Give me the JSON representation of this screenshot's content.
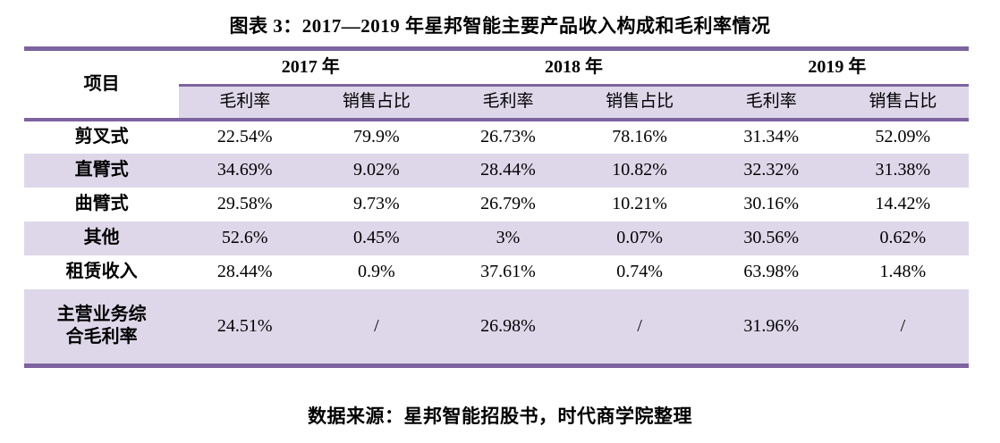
{
  "page": {
    "title": "图表 3：2017—2019 年星邦智能主要产品收入构成和毛利率情况",
    "source_note": "数据来源：星邦智能招股书，时代商学院整理"
  },
  "colors": {
    "border_purple": "#7D639F",
    "row_lavender": "#DED7E9",
    "text": "#000000",
    "background": "#FFFFFF"
  },
  "chart_data": {
    "type": "table",
    "title": "图表 3：2017—2019 年星邦智能主要产品收入构成和毛利率情况",
    "item_header": "项目",
    "year_groups": [
      {
        "label": "2017 年",
        "sub": [
          "毛利率",
          "销售占比"
        ]
      },
      {
        "label": "2018 年",
        "sub": [
          "毛利率",
          "销售占比"
        ]
      },
      {
        "label": "2019 年",
        "sub": [
          "毛利率",
          "销售占比"
        ]
      }
    ],
    "rows": [
      {
        "label": "剪叉式",
        "values": [
          "22.54%",
          "79.9%",
          "26.73%",
          "78.16%",
          "31.34%",
          "52.09%"
        ]
      },
      {
        "label": "直臂式",
        "values": [
          "34.69%",
          "9.02%",
          "28.44%",
          "10.82%",
          "32.32%",
          "31.38%"
        ]
      },
      {
        "label": "曲臂式",
        "values": [
          "29.58%",
          "9.73%",
          "26.79%",
          "10.21%",
          "30.16%",
          "14.42%"
        ]
      },
      {
        "label": "其他",
        "values": [
          "52.6%",
          "0.45%",
          "3%",
          "0.07%",
          "30.56%",
          "0.62%"
        ]
      },
      {
        "label": "租赁收入",
        "values": [
          "28.44%",
          "0.9%",
          "37.61%",
          "0.74%",
          "63.98%",
          "1.48%"
        ]
      },
      {
        "label": "主营业务综合毛利率",
        "values": [
          "24.51%",
          "/",
          "26.98%",
          "/",
          "31.96%",
          "/"
        ]
      }
    ],
    "source_note": "数据来源：星邦智能招股书，时代商学院整理"
  }
}
